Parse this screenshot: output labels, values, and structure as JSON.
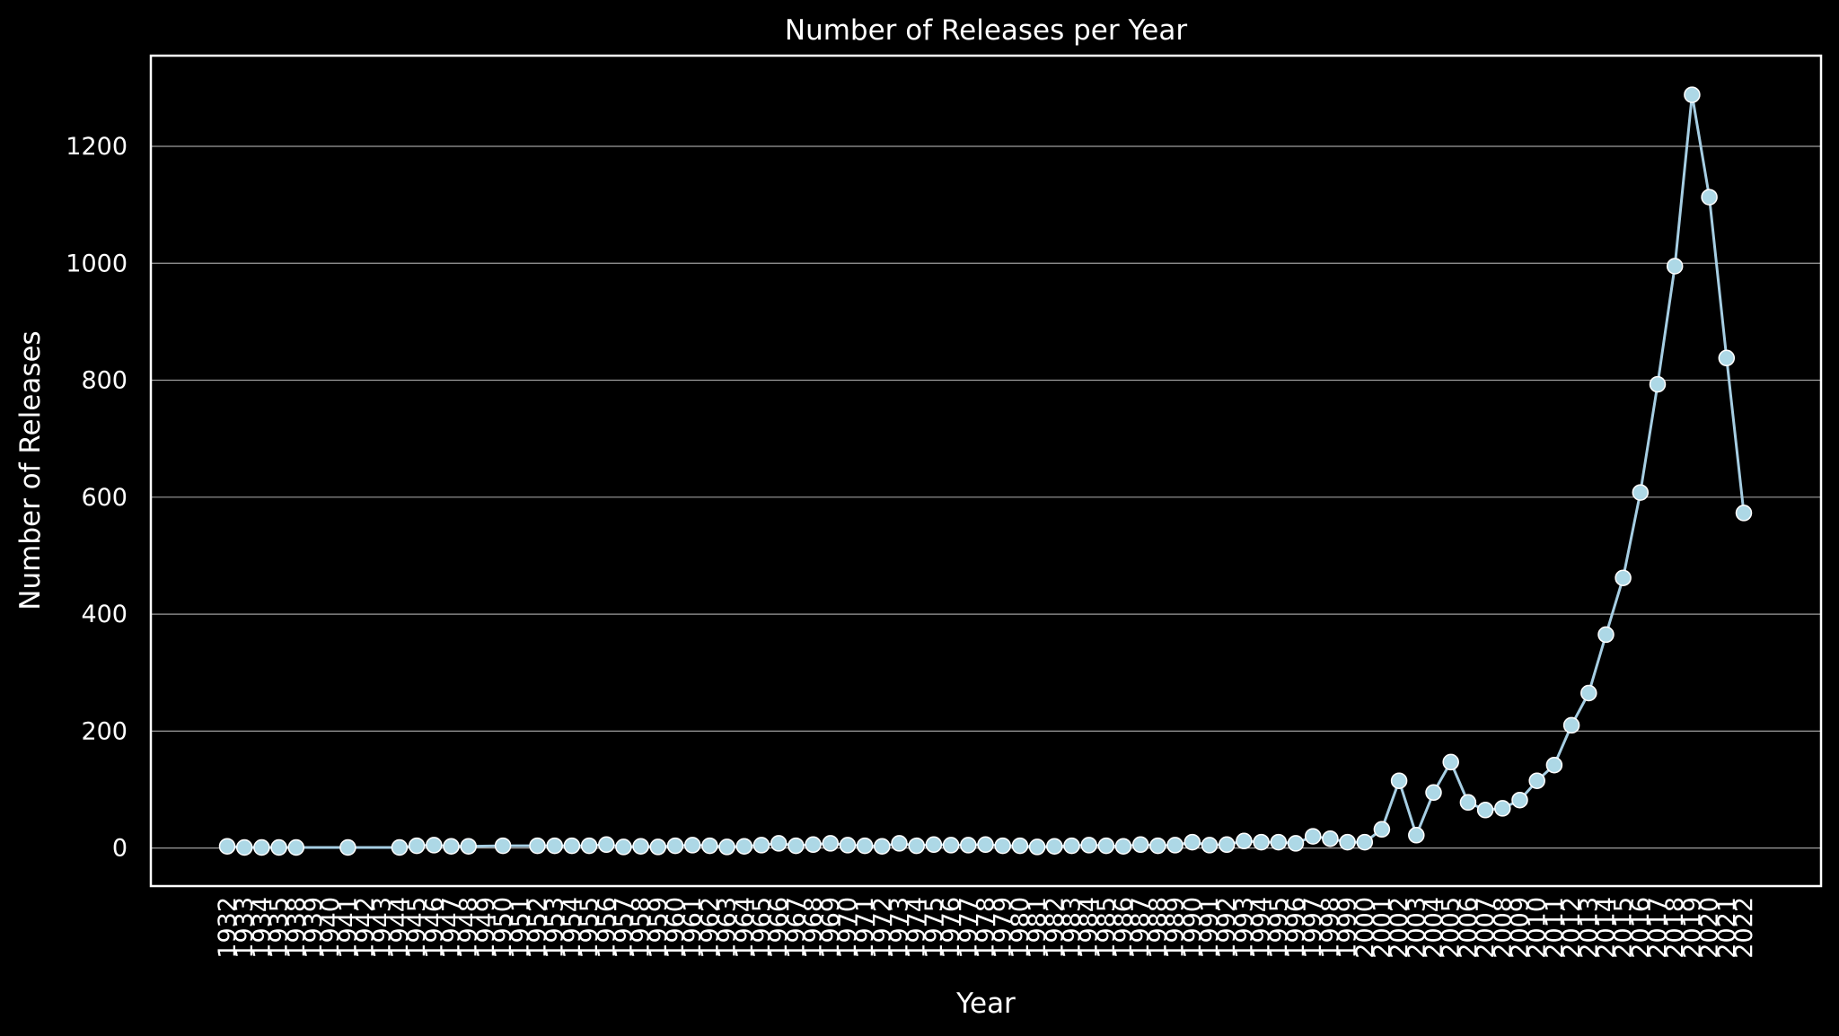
{
  "chart_data": {
    "type": "line",
    "title": "Number of Releases per Year",
    "xlabel": "Year",
    "ylabel": "Number of Releases",
    "ylim": [
      -65,
      1355
    ],
    "yticks": [
      0,
      200,
      400,
      600,
      800,
      1000,
      1200
    ],
    "grid": "horizontal",
    "colors": {
      "background": "#000000",
      "line": "#a6cee3",
      "marker": "#add8e6",
      "marker_edge": "#ffffff",
      "grid": "#9e9e9e",
      "frame": "#ffffff"
    },
    "x": [
      1932,
      1933,
      1934,
      1935,
      1938,
      1941,
      1944,
      1945,
      1946,
      1947,
      1948,
      1950,
      1952,
      1953,
      1954,
      1955,
      1956,
      1957,
      1958,
      1959,
      1960,
      1961,
      1962,
      1963,
      1964,
      1965,
      1966,
      1967,
      1968,
      1969,
      1970,
      1971,
      1972,
      1973,
      1974,
      1975,
      1976,
      1977,
      1978,
      1979,
      1980,
      1981,
      1982,
      1983,
      1984,
      1985,
      1986,
      1987,
      1988,
      1989,
      1990,
      1991,
      1992,
      1993,
      1994,
      1995,
      1996,
      1997,
      1998,
      1999,
      2000,
      2001,
      2002,
      2003,
      2004,
      2005,
      2006,
      2007,
      2008,
      2009,
      2010,
      2011,
      2012,
      2013,
      2014,
      2015,
      2016,
      2017,
      2018,
      2019,
      2020,
      2021,
      2022
    ],
    "x_tick_labels": [
      "1932",
      "1933",
      "1934",
      "1935",
      "1938",
      "1939",
      "1940",
      "1941",
      "1942",
      "1943",
      "1944",
      "1945",
      "1946",
      "1947",
      "1948",
      "1949",
      "1950",
      "1951",
      "1952",
      "1953",
      "1954",
      "1955",
      "1956",
      "1957",
      "1958",
      "1959",
      "1960",
      "1961",
      "1962",
      "1963",
      "1964",
      "1965",
      "1966",
      "1967",
      "1968",
      "1969",
      "1970",
      "1971",
      "1972",
      "1973",
      "1974",
      "1975",
      "1976",
      "1977",
      "1978",
      "1979",
      "1980",
      "1981",
      "1982",
      "1983",
      "1984",
      "1985",
      "1986",
      "1987",
      "1988",
      "1989",
      "1990",
      "1991",
      "1992",
      "1993",
      "1994",
      "1995",
      "1996",
      "1997",
      "1998",
      "1999",
      "2000",
      "2001",
      "2002",
      "2003",
      "2004",
      "2005",
      "2006",
      "2007",
      "2008",
      "2009",
      "2010",
      "2011",
      "2012",
      "2013",
      "2014",
      "2015",
      "2016",
      "2017",
      "2018",
      "2019",
      "2020",
      "2021",
      "2022"
    ],
    "series": [
      {
        "values": [
          3,
          1,
          1,
          1,
          1,
          1,
          1,
          4,
          5,
          3,
          3,
          4,
          4,
          4,
          4,
          4,
          6,
          2,
          3,
          2,
          4,
          5,
          4,
          2,
          3,
          5,
          8,
          4,
          6,
          8,
          5,
          4,
          3,
          8,
          4,
          6,
          5,
          5,
          6,
          4,
          4,
          2,
          3,
          4,
          5,
          4,
          3,
          6,
          4,
          5,
          10,
          5,
          6,
          12,
          10,
          10,
          8,
          20,
          16,
          10,
          10,
          32,
          115,
          22,
          95,
          147,
          78,
          65,
          68,
          82,
          115,
          142,
          210,
          265,
          365,
          462,
          608,
          793,
          995,
          1288,
          1113,
          838,
          573
        ]
      }
    ]
  }
}
